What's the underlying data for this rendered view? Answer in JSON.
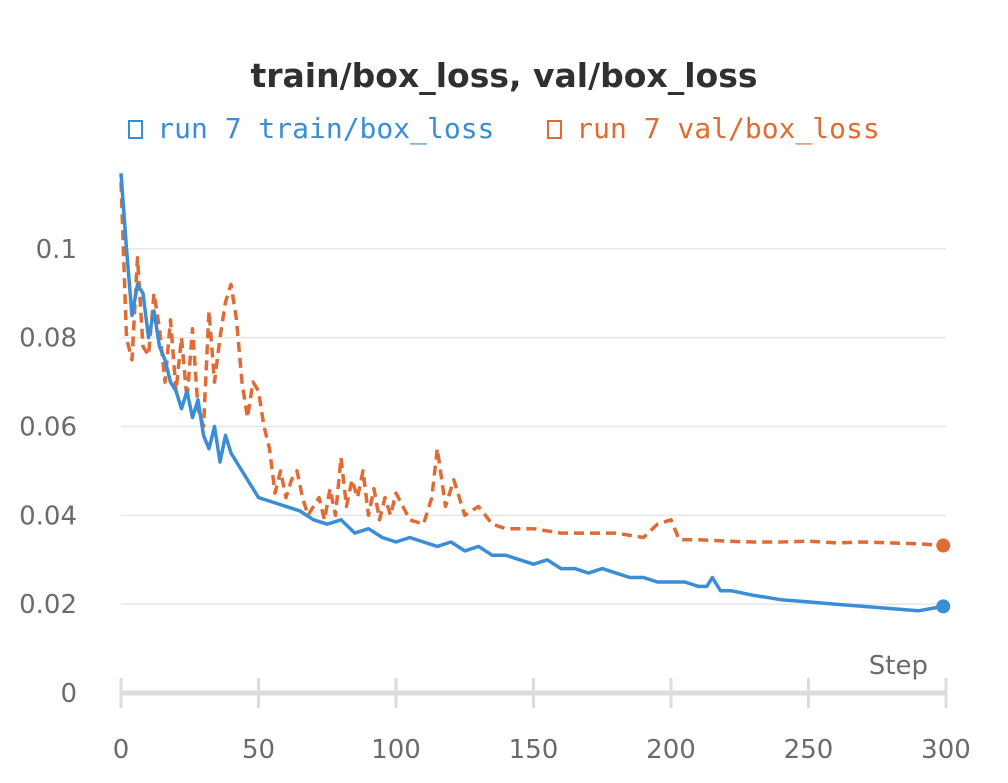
{
  "chart_data": {
    "type": "line",
    "title": "train/box_loss, val/box_loss",
    "xlabel": "Step",
    "ylabel": "",
    "xlim": [
      0,
      300
    ],
    "ylim": [
      0,
      0.12
    ],
    "grid": true,
    "legend_position": "top",
    "x_ticks": [
      0,
      50,
      100,
      150,
      200,
      250,
      300
    ],
    "y_ticks": [
      0,
      0.02,
      0.04,
      0.06,
      0.08,
      0.1
    ],
    "y_tick_labels": [
      "0",
      "0.02",
      "0.04",
      "0.06",
      "0.08",
      "0.1"
    ],
    "series": [
      {
        "name": "run 7 train/box_loss",
        "color": "#3b8ed6",
        "style": "solid",
        "x": [
          0,
          2,
          4,
          6,
          8,
          10,
          12,
          14,
          16,
          18,
          20,
          22,
          24,
          26,
          28,
          30,
          32,
          34,
          36,
          38,
          40,
          42,
          44,
          46,
          48,
          50,
          55,
          60,
          65,
          70,
          75,
          80,
          85,
          90,
          95,
          100,
          105,
          110,
          115,
          120,
          125,
          130,
          135,
          140,
          145,
          150,
          155,
          160,
          165,
          170,
          175,
          180,
          185,
          190,
          195,
          200,
          205,
          210,
          213,
          215,
          218,
          222,
          230,
          240,
          250,
          260,
          270,
          280,
          290,
          299
        ],
        "y": [
          0.117,
          0.1,
          0.085,
          0.092,
          0.09,
          0.08,
          0.086,
          0.078,
          0.075,
          0.07,
          0.068,
          0.064,
          0.068,
          0.062,
          0.066,
          0.058,
          0.055,
          0.06,
          0.052,
          0.058,
          0.054,
          0.052,
          0.05,
          0.048,
          0.046,
          0.044,
          0.043,
          0.042,
          0.041,
          0.039,
          0.038,
          0.039,
          0.036,
          0.037,
          0.035,
          0.034,
          0.035,
          0.034,
          0.033,
          0.034,
          0.032,
          0.033,
          0.031,
          0.031,
          0.03,
          0.029,
          0.03,
          0.028,
          0.028,
          0.027,
          0.028,
          0.027,
          0.026,
          0.026,
          0.025,
          0.025,
          0.025,
          0.024,
          0.024,
          0.026,
          0.023,
          0.023,
          0.022,
          0.021,
          0.0205,
          0.02,
          0.0195,
          0.019,
          0.0185,
          0.0195
        ]
      },
      {
        "name": "run 7 val/box_loss",
        "color": "#e06b34",
        "style": "dashed",
        "x": [
          0,
          2,
          4,
          6,
          8,
          10,
          12,
          14,
          16,
          18,
          20,
          22,
          24,
          26,
          28,
          30,
          32,
          34,
          36,
          38,
          40,
          42,
          44,
          46,
          48,
          50,
          52,
          54,
          56,
          58,
          60,
          62,
          64,
          66,
          68,
          70,
          72,
          74,
          76,
          78,
          80,
          82,
          84,
          86,
          88,
          90,
          92,
          94,
          96,
          98,
          100,
          105,
          110,
          113,
          115,
          118,
          121,
          125,
          130,
          135,
          140,
          150,
          160,
          170,
          180,
          190,
          195,
          200,
          203,
          210,
          220,
          230,
          240,
          250,
          260,
          270,
          280,
          290,
          299
        ],
        "y": [
          0.115,
          0.08,
          0.075,
          0.098,
          0.078,
          0.076,
          0.09,
          0.082,
          0.07,
          0.084,
          0.068,
          0.08,
          0.066,
          0.082,
          0.064,
          0.06,
          0.086,
          0.07,
          0.08,
          0.088,
          0.092,
          0.084,
          0.07,
          0.062,
          0.07,
          0.068,
          0.06,
          0.055,
          0.045,
          0.05,
          0.044,
          0.048,
          0.05,
          0.044,
          0.04,
          0.042,
          0.044,
          0.039,
          0.046,
          0.04,
          0.053,
          0.042,
          0.048,
          0.044,
          0.05,
          0.04,
          0.046,
          0.039,
          0.044,
          0.04,
          0.045,
          0.039,
          0.038,
          0.044,
          0.055,
          0.042,
          0.048,
          0.04,
          0.042,
          0.038,
          0.037,
          0.037,
          0.036,
          0.036,
          0.036,
          0.035,
          0.038,
          0.039,
          0.0345,
          0.0345,
          0.0342,
          0.034,
          0.034,
          0.0342,
          0.0338,
          0.034,
          0.0338,
          0.0336,
          0.0332
        ]
      }
    ]
  }
}
